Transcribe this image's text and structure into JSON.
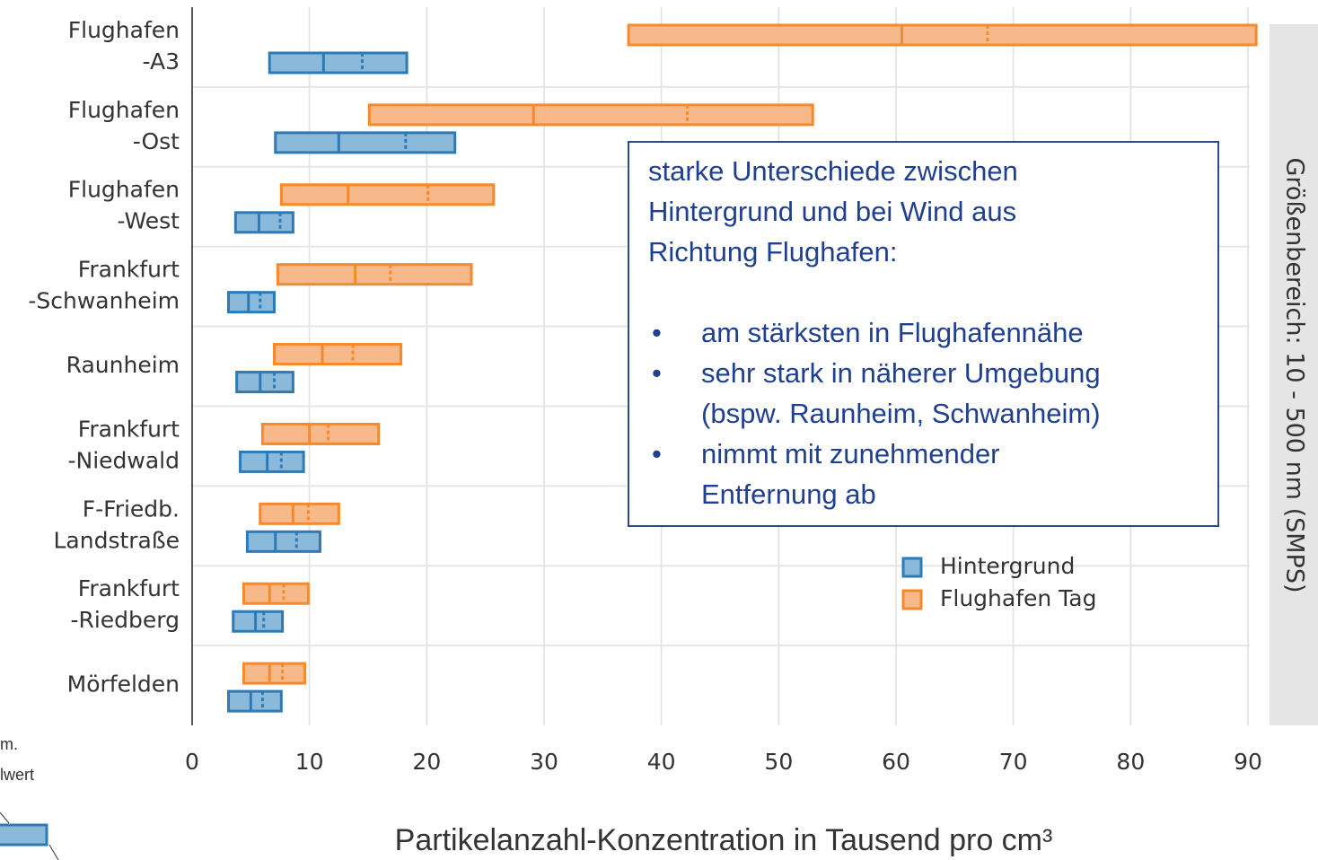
{
  "chart_data": {
    "type": "range-box",
    "categories": [
      [
        "Flughafen",
        "-A3"
      ],
      [
        "Flughafen",
        "-Ost"
      ],
      [
        "Flughafen",
        "-West"
      ],
      [
        "Frankfurt",
        "-Schwanheim"
      ],
      [
        "Raunheim"
      ],
      [
        "Frankfurt",
        "-Niedwald"
      ],
      [
        "F-Friedb.",
        "Landstraße"
      ],
      [
        "Frankfurt",
        "-Riedberg"
      ],
      [
        "Mörfelden"
      ]
    ],
    "series": [
      {
        "name": "Flughafen Tag",
        "color": "#f58a2c",
        "fill": "#f8b98a",
        "low": [
          37.2,
          15.1,
          7.6,
          7.3,
          7.0,
          6.0,
          5.8,
          4.4,
          4.4
        ],
        "high": [
          90.7,
          52.9,
          25.7,
          23.8,
          17.8,
          15.9,
          12.5,
          9.9,
          9.6
        ],
        "median": [
          60.5,
          29.1,
          13.3,
          13.9,
          11.1,
          10.0,
          8.6,
          6.6,
          6.6
        ],
        "mean": [
          67.8,
          42.2,
          20.1,
          16.9,
          13.7,
          11.6,
          9.9,
          7.8,
          7.7
        ]
      },
      {
        "name": "Hintergrund",
        "color": "#2c7bb6",
        "fill": "#8bb9da",
        "low": [
          6.6,
          7.1,
          3.7,
          3.1,
          3.8,
          4.1,
          4.7,
          3.5,
          3.1
        ],
        "high": [
          18.3,
          22.4,
          8.6,
          7.0,
          8.6,
          9.5,
          10.9,
          7.7,
          7.6
        ],
        "median": [
          11.2,
          12.5,
          5.7,
          4.8,
          5.8,
          6.4,
          7.1,
          5.4,
          5.0
        ],
        "mean": [
          14.5,
          18.2,
          7.5,
          5.8,
          7.0,
          7.6,
          8.9,
          6.1,
          6.0
        ]
      }
    ],
    "legend_order": [
      1,
      0
    ],
    "xlim": [
      0,
      90
    ],
    "xticks": [
      0,
      10,
      20,
      30,
      40,
      50,
      60,
      70,
      80,
      90
    ],
    "grid": true,
    "xlabel": "Partikelanzahl-Konzentration in Tausend pro cm³",
    "side_label": "Größenbereich: 10 - 500 nm (SMPS)",
    "annotation": {
      "heading": [
        "starke Unterschiede zwischen",
        "Hintergrund und bei Wind aus",
        "Richtung Flughafen:"
      ],
      "bullets": [
        [
          "am stärksten in Flughafennähe"
        ],
        [
          "sehr stark in näherer Umgebung",
          "(bspw. Raunheim, Schwanheim)"
        ],
        [
          "nimmt mit zunehmender",
          "Entfernung ab"
        ]
      ],
      "bullet": "•"
    },
    "cutoff_notes": [
      "m.",
      "lwert"
    ]
  }
}
